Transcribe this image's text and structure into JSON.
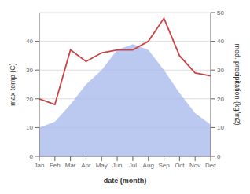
{
  "chart_data": {
    "type": "line",
    "xlabel": "date (month)",
    "ylabel": "max temp (C)",
    "y2label": "med. precipitation (kg/m2)",
    "categories": [
      "Jan",
      "Feb",
      "Mar",
      "Apr",
      "May",
      "Jun",
      "Jul",
      "Aug",
      "Sep",
      "Oct",
      "Nov",
      "Dec"
    ],
    "series": [
      {
        "type": "area",
        "axis": "y2",
        "color": "#aabbee",
        "values": [
          10,
          12,
          18,
          25,
          30,
          37,
          39,
          37,
          30,
          22,
          15,
          11
        ]
      },
      {
        "type": "line",
        "axis": "y",
        "color": "#cc4444",
        "values": [
          20,
          18,
          37,
          33,
          36,
          37,
          37,
          40,
          48,
          35,
          29,
          28
        ]
      }
    ],
    "ylim": [
      0,
      50
    ],
    "yticks": [
      0,
      10,
      20,
      30,
      40
    ],
    "y2lim": [
      0,
      50
    ],
    "y2ticks": [
      0,
      10,
      20,
      30,
      40,
      50
    ],
    "grid": true
  }
}
